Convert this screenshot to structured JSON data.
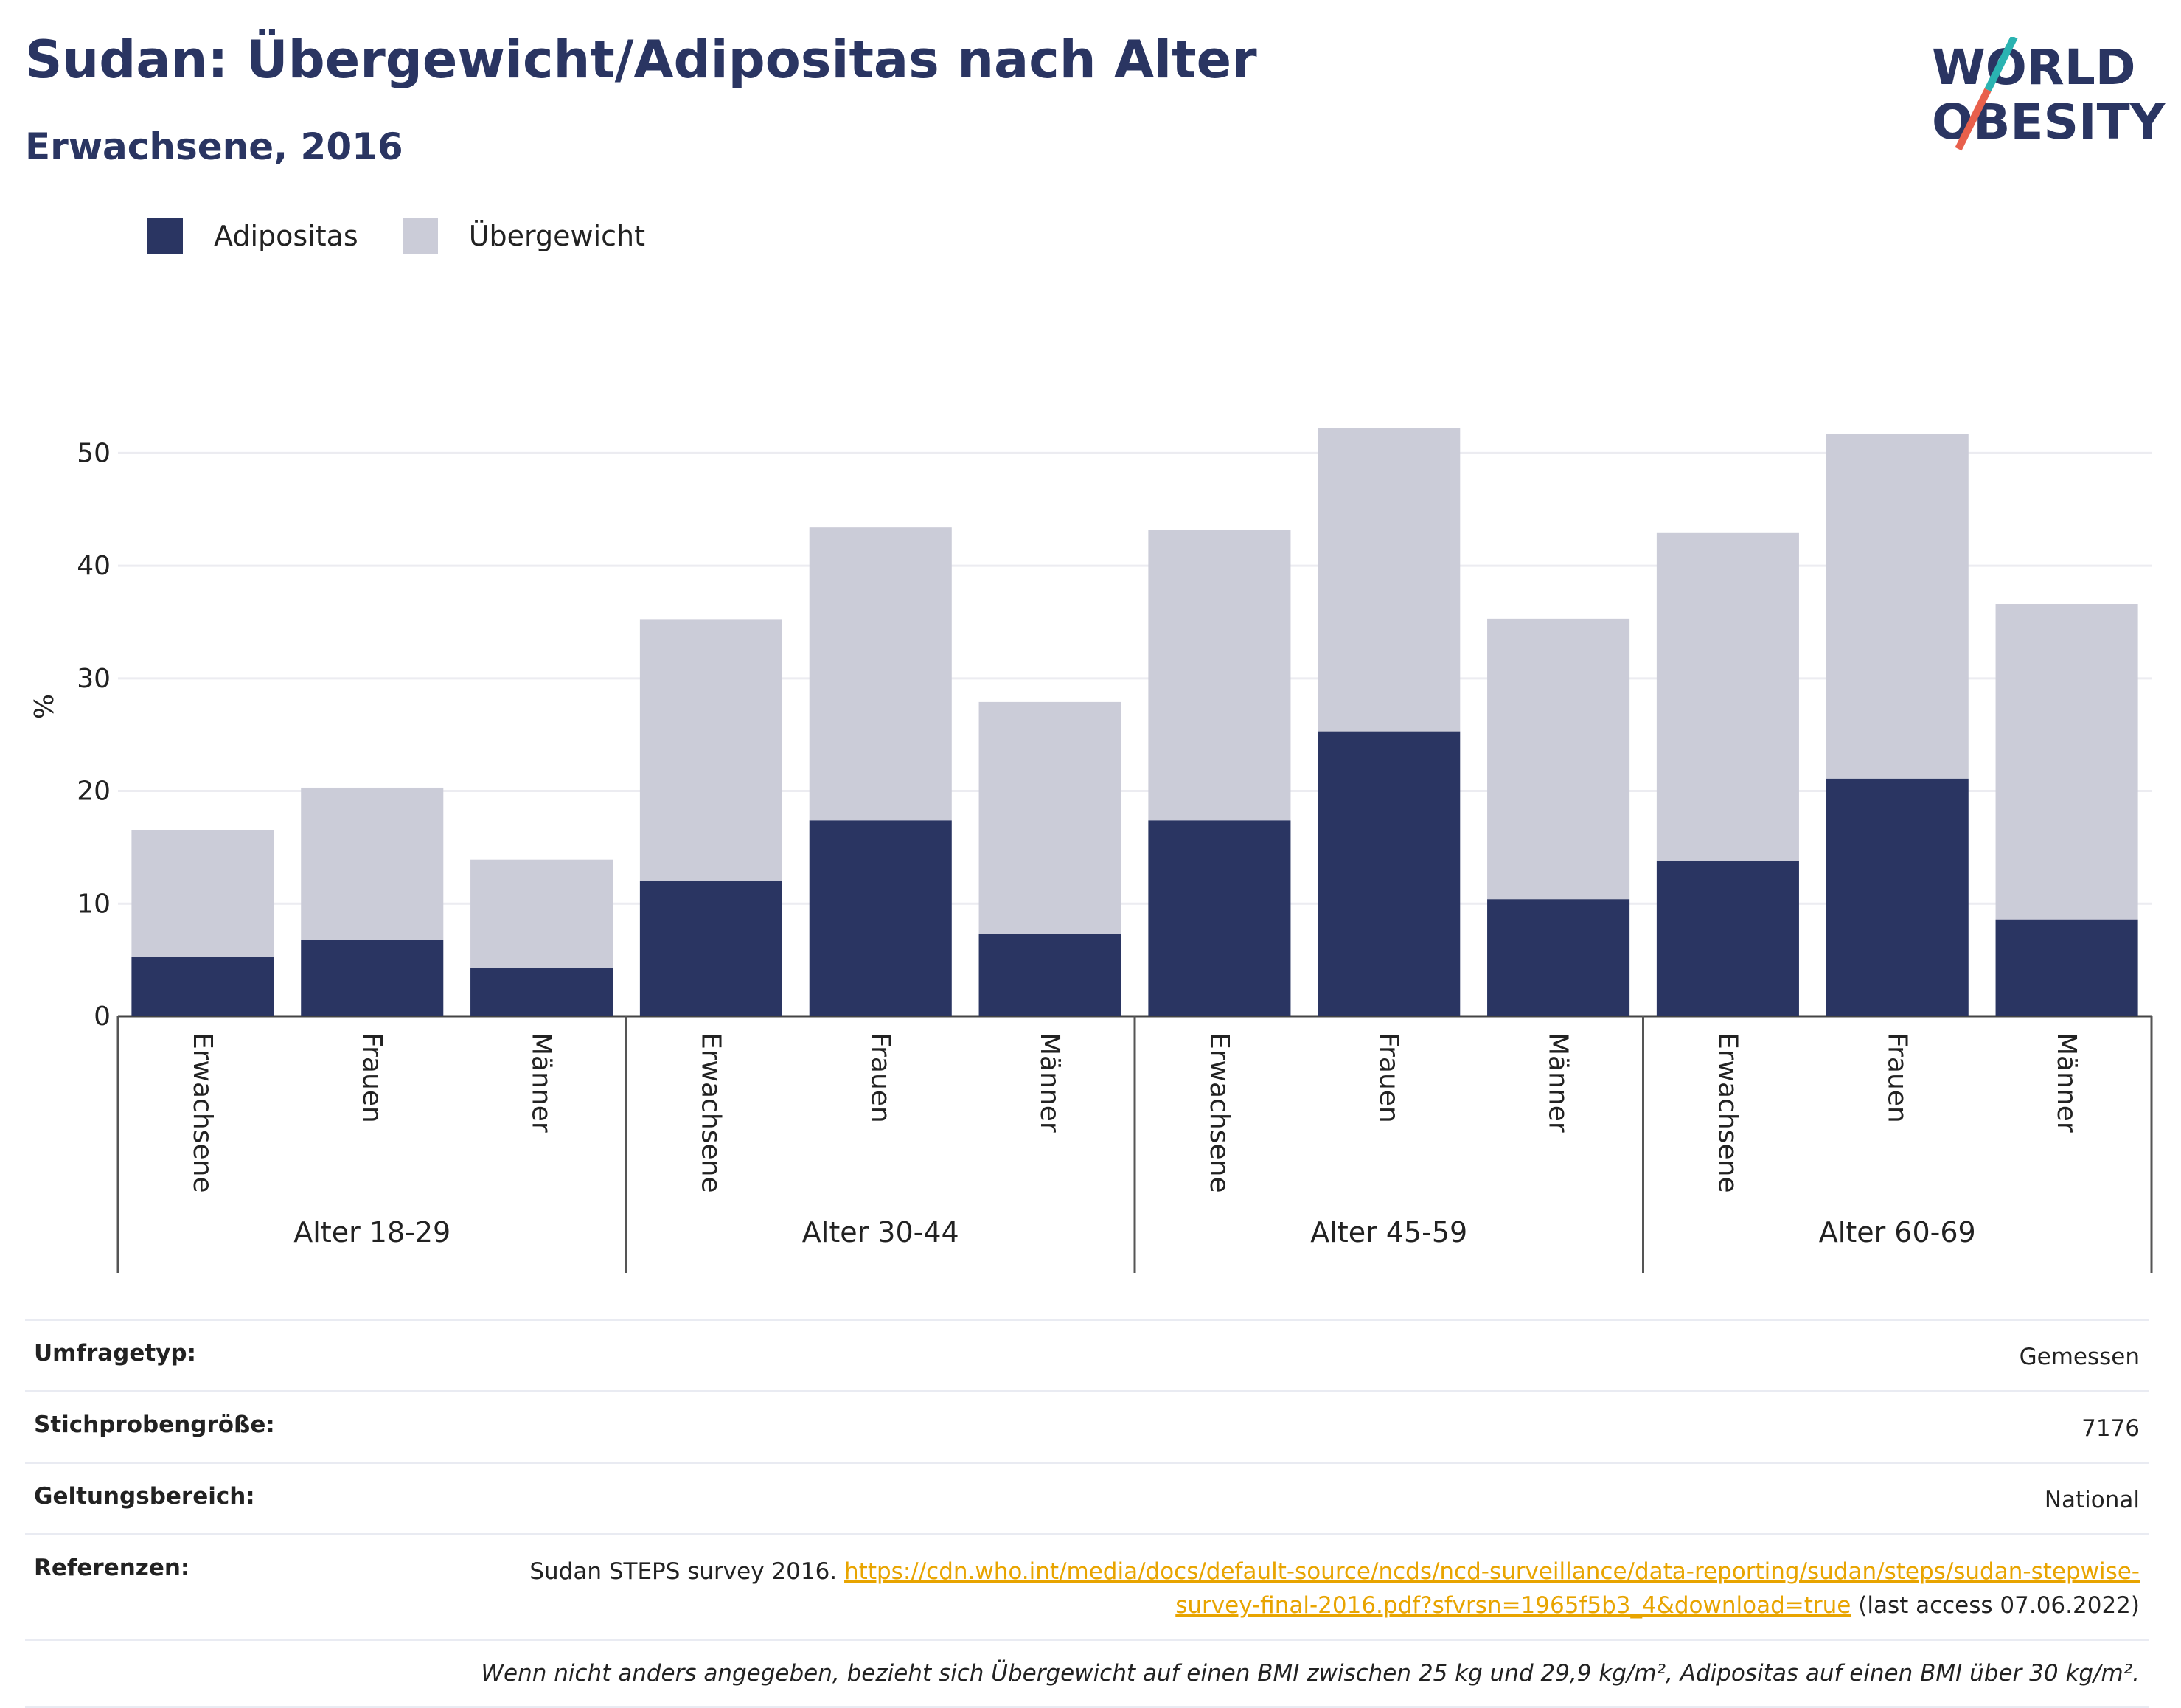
{
  "header": {
    "title": "Sudan: Übergewicht/Adipositas nach Alter",
    "subtitle": "Erwachsene, 2016"
  },
  "logo": {
    "line1": "WORLD",
    "line2": "OBESITY",
    "accent_teal": "#2ab3b1",
    "accent_red": "#e8604c"
  },
  "legend": {
    "items": [
      {
        "label": "Adipositas",
        "color": "#2a3562"
      },
      {
        "label": "Übergewicht",
        "color": "#cbccd8"
      }
    ]
  },
  "chart_data": {
    "type": "bar",
    "stacked": true,
    "ylabel": "%",
    "ylim": [
      0,
      55
    ],
    "yticks": [
      0,
      10,
      20,
      30,
      40,
      50
    ],
    "grid": true,
    "legend_position": "top-left",
    "groups": [
      {
        "label": "Alter 18-29",
        "categories": [
          "Erwachsene",
          "Frauen",
          "Männer"
        ]
      },
      {
        "label": "Alter 30-44",
        "categories": [
          "Erwachsene",
          "Frauen",
          "Männer"
        ]
      },
      {
        "label": "Alter 45-59",
        "categories": [
          "Erwachsene",
          "Frauen",
          "Männer"
        ]
      },
      {
        "label": "Alter 60-69",
        "categories": [
          "Erwachsene",
          "Frauen",
          "Männer"
        ]
      }
    ],
    "series": [
      {
        "name": "Adipositas",
        "color": "#2a3562",
        "values": [
          5.3,
          6.8,
          4.3,
          12.0,
          17.4,
          7.3,
          17.4,
          25.3,
          10.4,
          13.8,
          21.1,
          8.6
        ]
      },
      {
        "name": "Übergewicht",
        "color": "#cbccd8",
        "values": [
          11.2,
          13.5,
          9.6,
          23.2,
          26.0,
          20.6,
          25.8,
          26.9,
          24.9,
          29.1,
          30.6,
          28.0
        ]
      }
    ]
  },
  "meta": {
    "survey_type_label": "Umfragetyp:",
    "survey_type_value": "Gemessen",
    "sample_size_label": "Stichprobengröße:",
    "sample_size_value": "7176",
    "scope_label": "Geltungsbereich:",
    "scope_value": "National",
    "references_label": "Referenzen:",
    "references_text": "Sudan STEPS survey 2016.",
    "references_link": "https://cdn.who.int/media/docs/default-source/ncds/ncd-surveillance/data-reporting/sudan/steps/sudan-stepwise-survey-final-2016.pdf?sfvrsn=1965f5b3_4&download=true",
    "references_access": "(last access 07.06.2022)",
    "footnote": "Wenn nicht anders angegeben, bezieht sich Übergewicht auf einen BMI zwischen 25 kg und 29,9 kg/m², Adipositas auf einen BMI über 30 kg/m²."
  }
}
